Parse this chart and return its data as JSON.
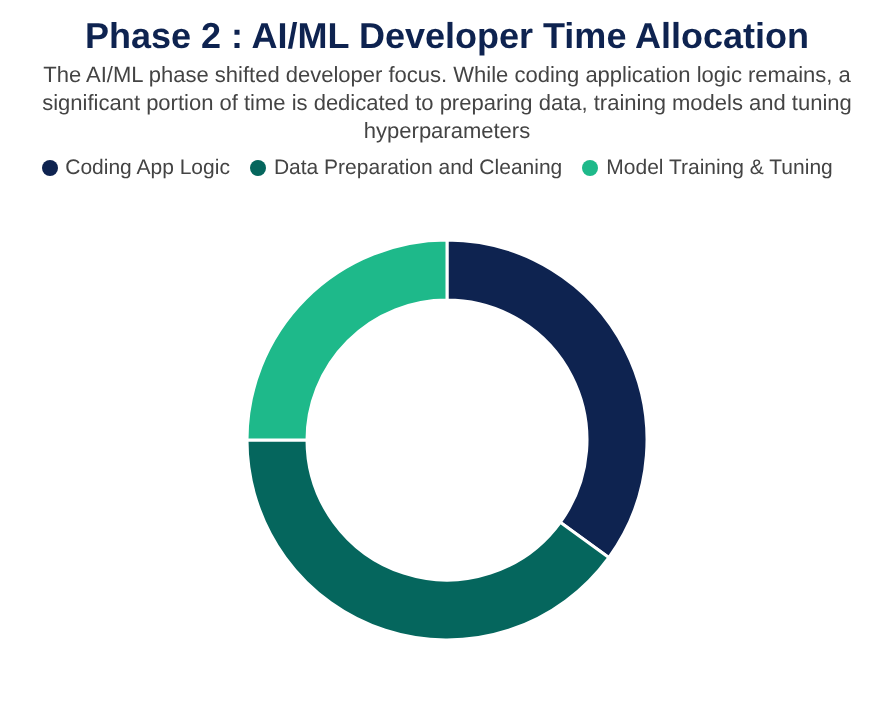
{
  "chart_data": {
    "type": "donut",
    "title": "Phase 2 : AI/ML Developer Time Allocation",
    "subtitle": "The AI/ML phase shifted developer focus. While coding application logic remains, a significant portion of time is dedicated to preparing data, training models and tuning hyperparameters",
    "categories": [
      "Coding App Logic",
      "Data Preparation and Cleaning",
      "Model Training & Tuning"
    ],
    "values": [
      35,
      40,
      25
    ],
    "colors": [
      "#0e2350",
      "#05665d",
      "#1eb98a"
    ],
    "legend": "top"
  }
}
